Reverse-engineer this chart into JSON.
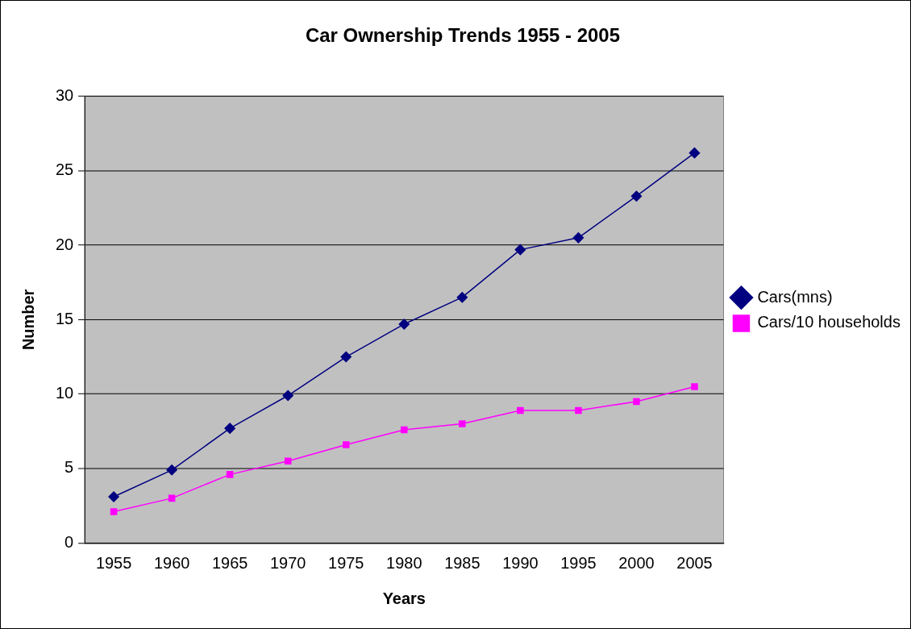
{
  "chart_data": {
    "type": "line",
    "title": "Car Ownership Trends 1955 - 2005",
    "xlabel": "Years",
    "ylabel": "Number",
    "categories": [
      "1955",
      "1960",
      "1965",
      "1970",
      "1975",
      "1980",
      "1985",
      "1990",
      "1995",
      "2000",
      "2005"
    ],
    "series": [
      {
        "name": "Cars(mns)",
        "color": "#000080",
        "marker": "diamond",
        "values": [
          3.1,
          4.9,
          7.7,
          9.9,
          12.5,
          14.7,
          16.5,
          19.7,
          20.5,
          23.3,
          26.2
        ]
      },
      {
        "name": "Cars/10 households",
        "color": "#ff00ff",
        "marker": "square",
        "values": [
          2.1,
          3.0,
          4.6,
          5.5,
          6.6,
          7.6,
          8.0,
          8.9,
          8.9,
          9.5,
          10.5
        ]
      }
    ],
    "ylim": [
      0,
      30
    ],
    "yticks": [
      0,
      5,
      10,
      15,
      20,
      25,
      30
    ],
    "grid": "y",
    "legend": "right"
  }
}
